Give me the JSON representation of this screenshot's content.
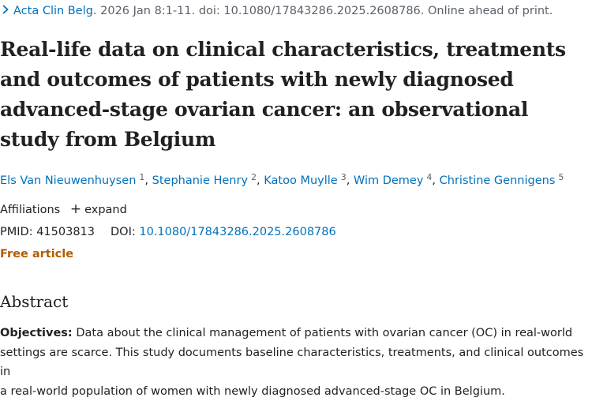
{
  "header": {
    "journal": "Acta Clin Belg.",
    "citation": " 2026 Jan 8:1-11. doi: 10.1080/17843286.2025.2608786. Online ahead of print."
  },
  "article": {
    "title": "Real-life data on clinical characteristics, treatments and outcomes of patients with newly diagnosed advanced-stage ovarian cancer: an observational study from Belgium",
    "authors": [
      {
        "name": "Els Van Nieuwenhuysen",
        "aff": "1"
      },
      {
        "name": "Stephanie Henry",
        "aff": "2"
      },
      {
        "name": "Katoo Muylle",
        "aff": "3"
      },
      {
        "name": "Wim Demey",
        "aff": "4"
      },
      {
        "name": "Christine Gennigens",
        "aff": "5"
      }
    ],
    "affiliations_label": "Affiliations",
    "expand_label": "expand",
    "pmid_label": "PMID:",
    "pmid": "41503813",
    "doi_label": "DOI:",
    "doi": "10.1080/17843286.2025.2608786",
    "free_label": "Free article"
  },
  "abstract": {
    "heading": "Abstract",
    "objectives_label": "Objectives:",
    "objectives_text": " Data about the clinical management of patients with ovarian cancer (OC) in real-world\nsettings are scarce. This study documents baseline characteristics, treatments, and clinical outcomes in\na real-world population of women with newly diagnosed advanced-stage OC in Belgium."
  },
  "colors": {
    "link": "#0071bc",
    "free_article": "#b35c00",
    "muted": "#5b616b",
    "text": "#212121"
  }
}
